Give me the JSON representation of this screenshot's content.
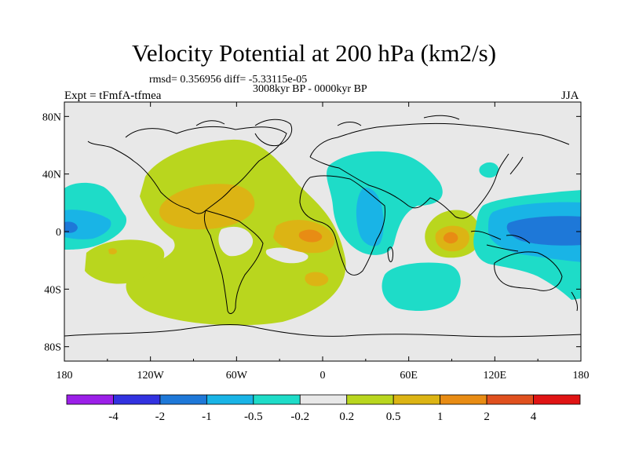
{
  "title": "Velocity Potential at 200 hPa (km2/s)",
  "stats": "rmsd= 0.356956 diff= -5.33115e-05",
  "period": "3008kyr BP - 0000kyr BP",
  "experiment": "Expt = tFmfA-tfmea",
  "season": "JJA",
  "map": {
    "lon_range": [
      -180,
      180
    ],
    "lat_range": [
      -90,
      90
    ],
    "x_ticks": [
      {
        "label": "180",
        "lon": -180
      },
      {
        "label": "120W",
        "lon": -120
      },
      {
        "label": "60W",
        "lon": -60
      },
      {
        "label": "0",
        "lon": 0
      },
      {
        "label": "60E",
        "lon": 60
      },
      {
        "label": "120E",
        "lon": 120
      },
      {
        "label": "180",
        "lon": 180
      }
    ],
    "y_ticks": [
      {
        "label": "80N",
        "lat": 80
      },
      {
        "label": "40N",
        "lat": 40
      },
      {
        "label": "0",
        "lat": 0
      },
      {
        "label": "40S",
        "lat": -40
      },
      {
        "label": "80S",
        "lat": -80
      }
    ]
  },
  "colorbar": {
    "colors": [
      "#9b1fe8",
      "#3232e0",
      "#1e78d8",
      "#19b4e6",
      "#1edcc8",
      "#e8e8e8",
      "#b9d61e",
      "#dcb414",
      "#e88c14",
      "#e0501e",
      "#e01414"
    ],
    "labels": [
      "-4",
      "-2",
      "-1",
      "-0.5",
      "-0.2",
      "0.2",
      "0.5",
      "1",
      "2",
      "4"
    ]
  }
}
